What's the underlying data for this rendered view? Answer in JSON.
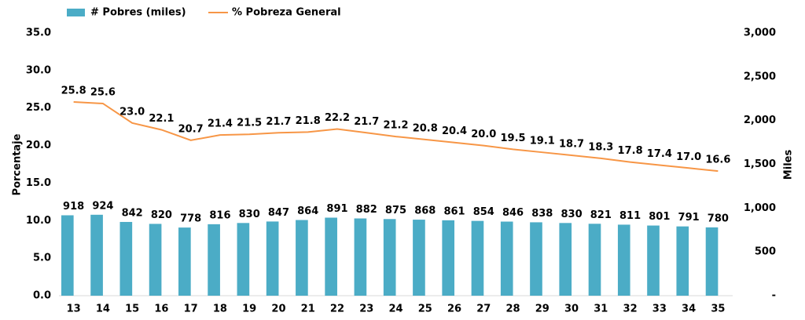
{
  "chart_data": {
    "type": "bar-line",
    "categories": [
      "13",
      "14",
      "15",
      "16",
      "17",
      "18",
      "19",
      "20",
      "21",
      "22",
      "23",
      "24",
      "25",
      "26",
      "27",
      "28",
      "29",
      "30",
      "31",
      "32",
      "33",
      "34",
      "35"
    ],
    "series": [
      {
        "name": "# Pobres (miles)",
        "type": "bar",
        "axis": "y2",
        "color": "#4bacc6",
        "values": [
          918,
          924,
          842,
          820,
          778,
          816,
          830,
          847,
          864,
          891,
          882,
          875,
          868,
          861,
          854,
          846,
          838,
          830,
          821,
          811,
          801,
          791,
          780
        ]
      },
      {
        "name": "% Pobreza General",
        "type": "line",
        "color": "#f79646",
        "values": [
          25.8,
          25.6,
          23.0,
          22.1,
          20.7,
          21.4,
          21.5,
          21.7,
          21.8,
          22.2,
          21.7,
          21.2,
          20.8,
          20.4,
          20.0,
          19.5,
          19.1,
          18.7,
          18.3,
          17.8,
          17.4,
          17.0,
          16.6
        ],
        "value_labels": [
          "25.8",
          "25.6",
          "23.0",
          "22.1",
          "20.7",
          "21.4",
          "21.5",
          "21.7",
          "21.8",
          "22.2",
          "21.7",
          "21.2",
          "20.8",
          "20.4",
          "20.0",
          "19.5",
          "19.1",
          "18.7",
          "18.3",
          "17.8",
          "17.4",
          "17.0",
          "16.6"
        ]
      }
    ],
    "y_label": "Porcentaje",
    "y2_label": "Miles",
    "ylim": [
      0,
      35
    ],
    "yticks": [
      {
        "value": 0,
        "label": "0.0"
      },
      {
        "value": 5,
        "label": "5.0"
      },
      {
        "value": 10,
        "label": "10.0"
      },
      {
        "value": 15,
        "label": "15.0"
      },
      {
        "value": 20,
        "label": "20.0"
      },
      {
        "value": 25,
        "label": "25.0"
      },
      {
        "value": 30,
        "label": "30.0"
      },
      {
        "value": 35,
        "label": "35.0"
      }
    ],
    "y2lim": [
      0,
      3000
    ],
    "y2ticks": [
      {
        "value": 0,
        "label": "-"
      },
      500,
      {
        "value": 1000,
        "label": "1,000"
      },
      {
        "value": 1500,
        "label": "1,500"
      },
      {
        "value": 2000,
        "label": "2,000"
      },
      {
        "value": 2500,
        "label": "2,500"
      },
      {
        "value": 3000,
        "label": "3,000"
      }
    ],
    "grid": false,
    "legend": "top-left"
  }
}
